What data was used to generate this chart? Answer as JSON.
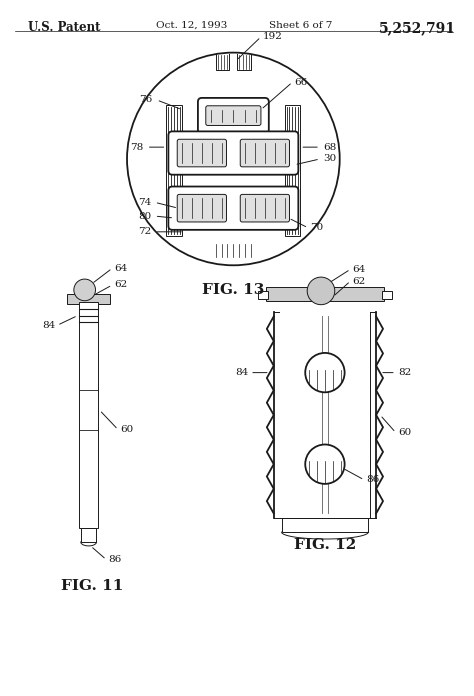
{
  "bg_color": "#ffffff",
  "line_color": "#1a1a1a",
  "header_text": "U.S. Patent",
  "header_date": "Oct. 12, 1993",
  "header_sheet": "Sheet 6 of 7",
  "header_patent": "5,252,791",
  "fig13_label": "FIG. 13",
  "fig11_label": "FIG. 11",
  "fig12_label": "FIG. 12"
}
